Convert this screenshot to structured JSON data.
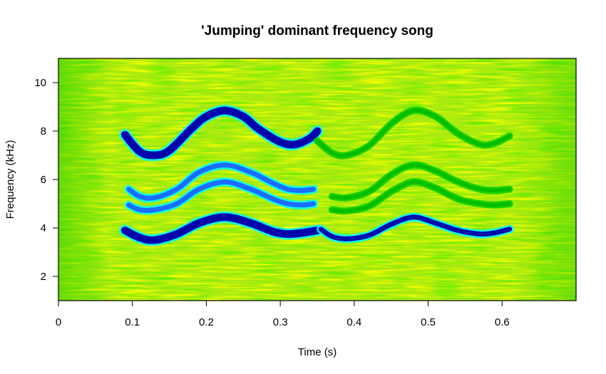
{
  "chart_data": {
    "type": "heatmap",
    "title": "'Jumping' dominant frequency song",
    "xlabel": "Time (s)",
    "ylabel": "Frequency (kHz)",
    "xlim": [
      0,
      0.7
    ],
    "ylim": [
      1,
      11
    ],
    "x_ticks": [
      0,
      0.1,
      0.2,
      0.3,
      0.4,
      0.5,
      0.6
    ],
    "x_tick_labels": [
      "0",
      "0.1",
      "0.2",
      "0.3",
      "0.4",
      "0.5",
      "0.6"
    ],
    "y_ticks": [
      2,
      4,
      6,
      8,
      10
    ],
    "y_tick_labels": [
      "2",
      "4",
      "6",
      "8",
      "10"
    ],
    "grid": false,
    "legend": "none",
    "colormap": [
      "#00cc00",
      "#77ee00",
      "#ffff00",
      "#00ffff",
      "#0000aa"
    ],
    "background_color": "#a8ea10",
    "series": [
      {
        "time": [
          0.09,
          0.11,
          0.13,
          0.15,
          0.18,
          0.2,
          0.225,
          0.25,
          0.27,
          0.3,
          0.32,
          0.34,
          0.35
        ],
        "freq": [
          7.85,
          7.15,
          7.0,
          7.2,
          8.1,
          8.6,
          8.85,
          8.6,
          8.1,
          7.55,
          7.45,
          7.7,
          8.0
        ],
        "intensity": [
          0.55,
          1,
          1,
          1,
          1,
          1,
          1,
          1,
          1,
          1,
          0.95,
          0.7,
          0.5
        ]
      },
      {
        "time": [
          0.35,
          0.37,
          0.39,
          0.42,
          0.45,
          0.48,
          0.51,
          0.54,
          0.57,
          0.59,
          0.61
        ],
        "freq": [
          7.6,
          7.1,
          7.0,
          7.4,
          8.3,
          8.85,
          8.6,
          7.9,
          7.45,
          7.5,
          7.8
        ],
        "intensity": [
          0.15,
          0.15,
          0.15,
          0.15,
          0.15,
          0.15,
          0.15,
          0.15,
          0.15,
          0.15,
          0.1
        ]
      },
      {
        "time": [
          0.095,
          0.11,
          0.13,
          0.16,
          0.19,
          0.225,
          0.26,
          0.29,
          0.31,
          0.33,
          0.345
        ],
        "freq": [
          5.6,
          5.3,
          5.25,
          5.6,
          6.3,
          6.6,
          6.3,
          5.85,
          5.6,
          5.55,
          5.6
        ],
        "intensity": [
          0.55,
          0.6,
          0.62,
          0.65,
          0.65,
          0.65,
          0.62,
          0.58,
          0.55,
          0.5,
          0.45
        ]
      },
      {
        "time": [
          0.095,
          0.11,
          0.13,
          0.16,
          0.19,
          0.225,
          0.26,
          0.29,
          0.31,
          0.33,
          0.345
        ],
        "freq": [
          4.95,
          4.75,
          4.75,
          5.0,
          5.6,
          5.9,
          5.6,
          5.2,
          5.0,
          4.95,
          5.0
        ],
        "intensity": [
          0.55,
          0.6,
          0.62,
          0.65,
          0.65,
          0.65,
          0.62,
          0.58,
          0.55,
          0.5,
          0.45
        ]
      },
      {
        "time": [
          0.37,
          0.39,
          0.42,
          0.45,
          0.48,
          0.51,
          0.54,
          0.57,
          0.59,
          0.61
        ],
        "freq": [
          5.3,
          5.25,
          5.5,
          6.2,
          6.6,
          6.35,
          5.9,
          5.6,
          5.55,
          5.6
        ],
        "intensity": [
          0.12,
          0.12,
          0.12,
          0.12,
          0.12,
          0.12,
          0.12,
          0.12,
          0.12,
          0.1
        ]
      },
      {
        "time": [
          0.37,
          0.39,
          0.42,
          0.45,
          0.48,
          0.51,
          0.54,
          0.57,
          0.59,
          0.61
        ],
        "freq": [
          4.75,
          4.7,
          4.9,
          5.5,
          5.9,
          5.65,
          5.2,
          5.0,
          4.95,
          5.0
        ],
        "intensity": [
          0.12,
          0.12,
          0.12,
          0.12,
          0.12,
          0.12,
          0.12,
          0.12,
          0.12,
          0.1
        ]
      },
      {
        "time": [
          0.09,
          0.11,
          0.13,
          0.16,
          0.19,
          0.225,
          0.26,
          0.29,
          0.31,
          0.33,
          0.35
        ],
        "freq": [
          3.9,
          3.6,
          3.5,
          3.75,
          4.2,
          4.45,
          4.2,
          3.85,
          3.75,
          3.8,
          3.9
        ],
        "intensity": [
          0.7,
          0.9,
          0.9,
          0.9,
          0.9,
          0.9,
          0.9,
          0.85,
          0.8,
          0.7,
          0.6
        ]
      },
      {
        "time": [
          0.355,
          0.37,
          0.39,
          0.42,
          0.45,
          0.48,
          0.51,
          0.54,
          0.57,
          0.59,
          0.61
        ],
        "freq": [
          3.95,
          3.65,
          3.55,
          3.7,
          4.15,
          4.45,
          4.2,
          3.9,
          3.75,
          3.8,
          3.95
        ],
        "intensity": [
          0.6,
          0.8,
          0.85,
          0.85,
          0.85,
          0.9,
          0.9,
          0.85,
          0.8,
          0.7,
          0.6
        ]
      }
    ]
  }
}
